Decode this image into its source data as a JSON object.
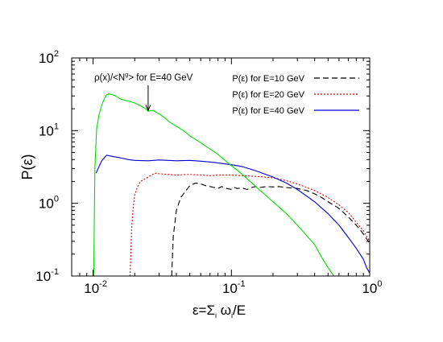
{
  "chart_data": {
    "type": "line",
    "x_scale": "log",
    "y_scale": "log",
    "xlim": [
      0.007,
      1.0
    ],
    "ylim": [
      0.1,
      100
    ],
    "xlabel": {
      "base": "ε=Σ",
      "sub": "i",
      "mid": " ω",
      "sub2": "i",
      "tail": "/E"
    },
    "ylabel": "P(ε)",
    "x_ticks": [
      {
        "value": 0.01,
        "base": "10",
        "exp": "-2"
      },
      {
        "value": 0.1,
        "base": "10",
        "exp": "-1"
      },
      {
        "value": 1.0,
        "base": "10",
        "exp": "0"
      }
    ],
    "y_ticks": [
      {
        "value": 0.1,
        "base": "10",
        "exp": "-1"
      },
      {
        "value": 1.0,
        "base": "10",
        "exp": "0"
      },
      {
        "value": 10.0,
        "base": "10",
        "exp": "1"
      },
      {
        "value": 100.0,
        "base": "10",
        "exp": "2"
      }
    ],
    "legend_position": "top-right",
    "grid": false,
    "annotation": {
      "before": "ρ(x)/<N",
      "sup": "g",
      "after": "> for E=40 GeV",
      "x": 0.025,
      "y": 18
    },
    "series": [
      {
        "name": "P(ε) for E=10 GeV",
        "color": "#000000",
        "dash": "7,4",
        "points": [
          [
            0.037,
            0.1
          ],
          [
            0.038,
            0.35
          ],
          [
            0.04,
            0.8
          ],
          [
            0.043,
            1.2
          ],
          [
            0.047,
            1.5
          ],
          [
            0.05,
            1.75
          ],
          [
            0.055,
            1.9
          ],
          [
            0.06,
            1.85
          ],
          [
            0.065,
            1.75
          ],
          [
            0.07,
            1.7
          ],
          [
            0.075,
            1.65
          ],
          [
            0.08,
            1.6
          ],
          [
            0.085,
            1.7
          ],
          [
            0.09,
            1.62
          ],
          [
            0.095,
            1.58
          ],
          [
            0.1,
            1.55
          ],
          [
            0.105,
            1.65
          ],
          [
            0.11,
            1.6
          ],
          [
            0.12,
            1.62
          ],
          [
            0.13,
            1.55
          ],
          [
            0.14,
            1.65
          ],
          [
            0.15,
            1.7
          ],
          [
            0.16,
            1.65
          ],
          [
            0.18,
            1.7
          ],
          [
            0.2,
            1.68
          ],
          [
            0.22,
            1.7
          ],
          [
            0.25,
            1.65
          ],
          [
            0.3,
            1.6
          ],
          [
            0.35,
            1.5
          ],
          [
            0.4,
            1.35
          ],
          [
            0.45,
            1.2
          ],
          [
            0.5,
            1.05
          ],
          [
            0.6,
            0.85
          ],
          [
            0.7,
            0.65
          ],
          [
            0.8,
            0.5
          ],
          [
            0.9,
            0.38
          ],
          [
            1.0,
            0.28
          ]
        ]
      },
      {
        "name": "P(ε) for E=20 GeV",
        "color": "#e00000",
        "dash": "2,2",
        "points": [
          [
            0.0185,
            0.1
          ],
          [
            0.019,
            0.45
          ],
          [
            0.0195,
            0.9
          ],
          [
            0.02,
            1.3
          ],
          [
            0.021,
            1.7
          ],
          [
            0.022,
            2.0
          ],
          [
            0.024,
            2.2
          ],
          [
            0.026,
            2.4
          ],
          [
            0.028,
            2.6
          ],
          [
            0.03,
            2.55
          ],
          [
            0.035,
            2.5
          ],
          [
            0.04,
            2.45
          ],
          [
            0.05,
            2.5
          ],
          [
            0.06,
            2.45
          ],
          [
            0.07,
            2.4
          ],
          [
            0.08,
            2.45
          ],
          [
            0.1,
            2.45
          ],
          [
            0.12,
            2.4
          ],
          [
            0.15,
            2.35
          ],
          [
            0.2,
            2.25
          ],
          [
            0.25,
            2.05
          ],
          [
            0.3,
            1.85
          ],
          [
            0.4,
            1.5
          ],
          [
            0.5,
            1.2
          ],
          [
            0.6,
            0.95
          ],
          [
            0.7,
            0.75
          ],
          [
            0.8,
            0.55
          ],
          [
            0.9,
            0.42
          ],
          [
            1.0,
            0.3
          ]
        ]
      },
      {
        "name": "P(ε) for E=40 GeV",
        "color": "#0000d0",
        "dash": "",
        "points": [
          [
            0.0105,
            2.6
          ],
          [
            0.0115,
            3.8
          ],
          [
            0.0125,
            4.6
          ],
          [
            0.014,
            4.4
          ],
          [
            0.016,
            4.2
          ],
          [
            0.018,
            4.0
          ],
          [
            0.02,
            3.9
          ],
          [
            0.025,
            3.85
          ],
          [
            0.03,
            3.95
          ],
          [
            0.035,
            3.9
          ],
          [
            0.04,
            3.85
          ],
          [
            0.05,
            3.9
          ],
          [
            0.06,
            3.8
          ],
          [
            0.07,
            3.7
          ],
          [
            0.08,
            3.6
          ],
          [
            0.1,
            3.4
          ],
          [
            0.12,
            3.2
          ],
          [
            0.15,
            2.8
          ],
          [
            0.2,
            2.3
          ],
          [
            0.25,
            1.9
          ],
          [
            0.3,
            1.55
          ],
          [
            0.4,
            1.05
          ],
          [
            0.5,
            0.72
          ],
          [
            0.6,
            0.5
          ],
          [
            0.7,
            0.34
          ],
          [
            0.8,
            0.24
          ],
          [
            0.9,
            0.17
          ],
          [
            0.95,
            0.13
          ],
          [
            1.0,
            0.11
          ]
        ]
      },
      {
        "name": "ρ(x)/<Ng> for E=40 GeV",
        "color": "#00dd00",
        "dash": "",
        "in_legend": false,
        "points": [
          [
            0.0101,
            0.1
          ],
          [
            0.0103,
            3.0
          ],
          [
            0.0106,
            10.5
          ],
          [
            0.011,
            16
          ],
          [
            0.0115,
            22
          ],
          [
            0.012,
            27
          ],
          [
            0.0125,
            31
          ],
          [
            0.013,
            32
          ],
          [
            0.014,
            31
          ],
          [
            0.015,
            29
          ],
          [
            0.016,
            27
          ],
          [
            0.017,
            26
          ],
          [
            0.018,
            25.5
          ],
          [
            0.02,
            24
          ],
          [
            0.022,
            22
          ],
          [
            0.024,
            20
          ],
          [
            0.025,
            18.5
          ],
          [
            0.027,
            19
          ],
          [
            0.03,
            17
          ],
          [
            0.033,
            15
          ],
          [
            0.036,
            13
          ],
          [
            0.04,
            11.5
          ],
          [
            0.045,
            10
          ],
          [
            0.05,
            8.5
          ],
          [
            0.06,
            6.8
          ],
          [
            0.07,
            5.6
          ],
          [
            0.08,
            4.7
          ],
          [
            0.09,
            3.9
          ],
          [
            0.1,
            3.3
          ],
          [
            0.12,
            2.5
          ],
          [
            0.15,
            1.7
          ],
          [
            0.2,
            1.05
          ],
          [
            0.25,
            0.72
          ],
          [
            0.3,
            0.5
          ],
          [
            0.35,
            0.36
          ],
          [
            0.4,
            0.27
          ],
          [
            0.45,
            0.18
          ],
          [
            0.5,
            0.13
          ],
          [
            0.55,
            0.1
          ]
        ]
      }
    ]
  }
}
